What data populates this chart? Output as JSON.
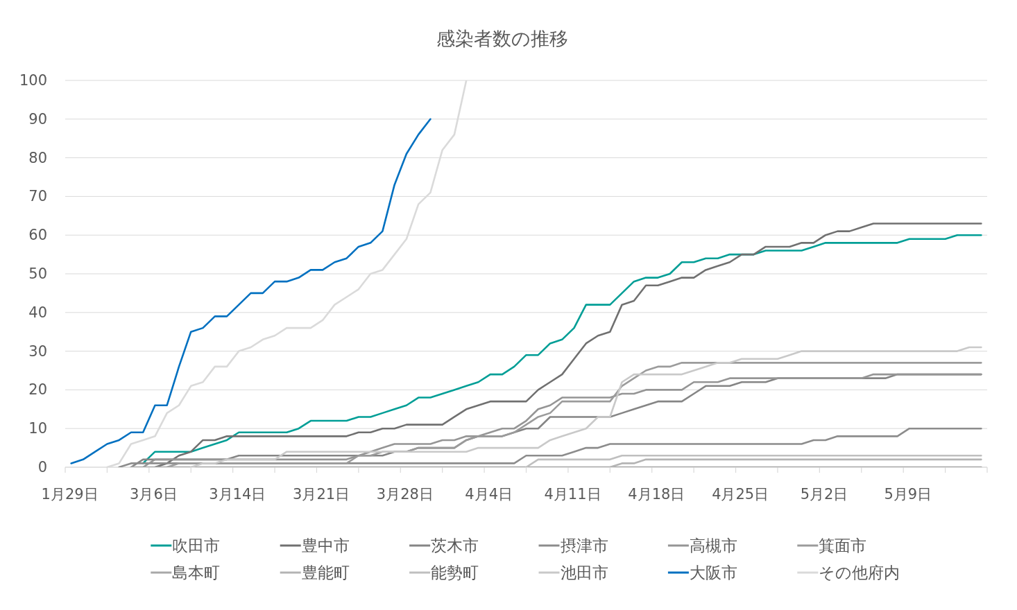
{
  "chart_data": {
    "type": "line",
    "title": "感染者数の推移",
    "categories": [
      "1月29日",
      null,
      null,
      null,
      null,
      null,
      null,
      "3月6日",
      null,
      null,
      null,
      null,
      null,
      null,
      "3月14日",
      null,
      null,
      null,
      null,
      null,
      null,
      "3月21日",
      null,
      null,
      null,
      null,
      null,
      null,
      "3月28日",
      null,
      null,
      null,
      null,
      null,
      null,
      "4月4日",
      null,
      null,
      null,
      null,
      null,
      null,
      "4月11日",
      null,
      null,
      null,
      null,
      null,
      null,
      "4月18日",
      null,
      null,
      null,
      null,
      null,
      null,
      "4月25日",
      null,
      null,
      null,
      null,
      null,
      null,
      "5月2日",
      null,
      null,
      null,
      null,
      null,
      null,
      "5月9日",
      null,
      null,
      null,
      null,
      null,
      null
    ],
    "series": [
      {
        "name": "吹田市",
        "color": "#009e96",
        "values": [
          null,
          null,
          null,
          null,
          null,
          null,
          1,
          4,
          4,
          4,
          4,
          5,
          6,
          7,
          9,
          9,
          9,
          9,
          9,
          10,
          12,
          12,
          12,
          12,
          13,
          13,
          14,
          15,
          16,
          18,
          18,
          19,
          20,
          21,
          22,
          24,
          24,
          26,
          29,
          29,
          32,
          33,
          36,
          42,
          42,
          42,
          45,
          48,
          49,
          49,
          50,
          53,
          53,
          54,
          54,
          55,
          55,
          55,
          56,
          56,
          56,
          56,
          57,
          58,
          58,
          58,
          58,
          58,
          58,
          58,
          59,
          59,
          59,
          59,
          60,
          60,
          60
        ]
      },
      {
        "name": "豊中市",
        "color": "#707070",
        "values": [
          null,
          null,
          null,
          null,
          null,
          null,
          null,
          0,
          1,
          3,
          4,
          7,
          7,
          8,
          8,
          8,
          8,
          8,
          8,
          8,
          8,
          8,
          8,
          8,
          9,
          9,
          10,
          10,
          11,
          11,
          11,
          11,
          13,
          15,
          16,
          17,
          17,
          17,
          17,
          20,
          22,
          24,
          28,
          32,
          34,
          35,
          42,
          43,
          47,
          47,
          48,
          49,
          49,
          51,
          52,
          53,
          55,
          55,
          57,
          57,
          57,
          58,
          58,
          60,
          61,
          61,
          62,
          63,
          63,
          63,
          63,
          63,
          63,
          63,
          63,
          63,
          63
        ]
      },
      {
        "name": "茨木市",
        "color": "#858585",
        "values": [
          null,
          null,
          null,
          null,
          null,
          0,
          2,
          2,
          2,
          2,
          2,
          2,
          2,
          2,
          3,
          3,
          3,
          3,
          3,
          3,
          3,
          3,
          3,
          3,
          3,
          3,
          3,
          4,
          4,
          5,
          5,
          5,
          5,
          7,
          8,
          8,
          8,
          9,
          10,
          10,
          13,
          13,
          13,
          13,
          13,
          13,
          14,
          15,
          16,
          17,
          17,
          17,
          19,
          21,
          21,
          21,
          22,
          22,
          22,
          23,
          23,
          23,
          23,
          23,
          23,
          23,
          23,
          23,
          23,
          24,
          24,
          24,
          24,
          24,
          24,
          24,
          24
        ]
      },
      {
        "name": "摂津市",
        "color": "#8c8c8c",
        "values": [
          null,
          null,
          null,
          null,
          0,
          1,
          1,
          1,
          1,
          1,
          1,
          1,
          1,
          1,
          1,
          1,
          1,
          1,
          1,
          1,
          1,
          1,
          1,
          1,
          1,
          1,
          1,
          1,
          1,
          1,
          1,
          1,
          1,
          1,
          1,
          1,
          1,
          1,
          3,
          3,
          3,
          3,
          4,
          5,
          5,
          6,
          6,
          6,
          6,
          6,
          6,
          6,
          6,
          6,
          6,
          6,
          6,
          6,
          6,
          6,
          6,
          6,
          7,
          7,
          8,
          8,
          8,
          8,
          8,
          8,
          10,
          10,
          10,
          10,
          10,
          10,
          10
        ]
      },
      {
        "name": "高槻市",
        "color": "#959595",
        "values": [
          null,
          null,
          null,
          null,
          null,
          null,
          0,
          2,
          2,
          2,
          2,
          2,
          2,
          2,
          2,
          2,
          2,
          2,
          2,
          2,
          2,
          2,
          2,
          2,
          3,
          4,
          5,
          6,
          6,
          6,
          6,
          7,
          7,
          8,
          8,
          9,
          10,
          10,
          12,
          15,
          16,
          18,
          18,
          18,
          18,
          18,
          19,
          19,
          20,
          20,
          20,
          20,
          22,
          22,
          22,
          23,
          23,
          23,
          23,
          23,
          23,
          23,
          23,
          23,
          23,
          23,
          23,
          24,
          24,
          24,
          24,
          24,
          24,
          24,
          24,
          24,
          24
        ]
      },
      {
        "name": "箕面市",
        "color": "#9b9b9b",
        "values": [
          null,
          null,
          null,
          null,
          null,
          null,
          null,
          null,
          0,
          1,
          1,
          1,
          1,
          1,
          1,
          1,
          1,
          1,
          1,
          1,
          1,
          1,
          1,
          1,
          3,
          3,
          4,
          4,
          4,
          5,
          5,
          5,
          5,
          7,
          8,
          8,
          8,
          9,
          11,
          13,
          14,
          17,
          17,
          17,
          17,
          17,
          21,
          23,
          25,
          26,
          26,
          27,
          27,
          27,
          27,
          27,
          27,
          27,
          27,
          27,
          27,
          27,
          27,
          27,
          27,
          27,
          27,
          27,
          27,
          27,
          27,
          27,
          27,
          27,
          27,
          27,
          27
        ]
      },
      {
        "name": "島本町",
        "color": "#a8a8a8",
        "values": [
          null,
          null,
          null,
          null,
          null,
          0,
          0,
          0,
          0,
          0,
          0,
          0,
          0,
          0,
          0,
          0,
          0,
          0,
          0,
          0,
          0,
          0,
          0,
          0,
          0,
          0,
          0,
          0,
          0,
          0,
          0,
          0,
          0,
          0,
          0,
          0,
          0,
          0,
          0,
          0,
          0,
          0,
          0,
          0,
          0,
          0,
          0,
          0,
          0,
          0,
          0,
          0,
          0,
          0,
          0,
          0,
          0,
          0,
          0,
          0,
          0,
          0,
          0,
          0,
          0,
          0,
          0,
          0,
          0,
          0,
          0,
          0,
          0,
          0,
          0,
          0,
          0
        ]
      },
      {
        "name": "豊能町",
        "color": "#b4b4b4",
        "values": [
          null,
          null,
          null,
          null,
          null,
          null,
          null,
          null,
          null,
          null,
          null,
          null,
          null,
          null,
          null,
          null,
          null,
          null,
          null,
          null,
          null,
          null,
          null,
          null,
          null,
          null,
          null,
          null,
          null,
          null,
          null,
          null,
          null,
          null,
          null,
          null,
          null,
          null,
          null,
          null,
          null,
          null,
          null,
          null,
          null,
          0,
          1,
          1,
          2,
          2,
          2,
          2,
          2,
          2,
          2,
          2,
          2,
          2,
          2,
          2,
          2,
          2,
          2,
          2,
          2,
          2,
          2,
          2,
          2,
          2,
          2,
          2,
          2,
          2,
          2,
          2,
          2
        ]
      },
      {
        "name": "能勢町",
        "color": "#bfbfbf",
        "values": [
          null,
          null,
          null,
          null,
          null,
          null,
          null,
          null,
          null,
          null,
          null,
          null,
          null,
          null,
          null,
          null,
          null,
          null,
          null,
          null,
          null,
          null,
          null,
          null,
          null,
          null,
          null,
          null,
          null,
          null,
          null,
          null,
          null,
          null,
          null,
          null,
          null,
          null,
          0,
          2,
          2,
          2,
          2,
          2,
          2,
          2,
          3,
          3,
          3,
          3,
          3,
          3,
          3,
          3,
          3,
          3,
          3,
          3,
          3,
          3,
          3,
          3,
          3,
          3,
          3,
          3,
          3,
          3,
          3,
          3,
          3,
          3,
          3,
          3,
          3,
          3,
          3
        ]
      },
      {
        "name": "池田市",
        "color": "#c9c9c9",
        "values": [
          null,
          null,
          null,
          null,
          null,
          null,
          null,
          null,
          null,
          null,
          0,
          1,
          1,
          2,
          2,
          2,
          2,
          2,
          4,
          4,
          4,
          4,
          4,
          4,
          4,
          4,
          4,
          4,
          4,
          4,
          4,
          4,
          4,
          4,
          5,
          5,
          5,
          5,
          5,
          5,
          7,
          8,
          9,
          10,
          13,
          13,
          22,
          24,
          24,
          24,
          24,
          24,
          25,
          26,
          27,
          27,
          28,
          28,
          28,
          28,
          29,
          30,
          30,
          30,
          30,
          30,
          30,
          30,
          30,
          30,
          30,
          30,
          30,
          30,
          30,
          31,
          31
        ]
      },
      {
        "name": "大阪市",
        "color": "#0070c0",
        "values": [
          1,
          2,
          4,
          6,
          7,
          9,
          9,
          16,
          16,
          26,
          35,
          36,
          39,
          39,
          42,
          45,
          45,
          48,
          48,
          49,
          51,
          51,
          53,
          54,
          57,
          58,
          61,
          73,
          81,
          86,
          90,
          null,
          null,
          null,
          null,
          null,
          null,
          null,
          null,
          null,
          null,
          null,
          null,
          null,
          null,
          null,
          null,
          null,
          null,
          null,
          null,
          null,
          null,
          null,
          null,
          null,
          null,
          null,
          null,
          null,
          null,
          null,
          null,
          null,
          null,
          null,
          null,
          null,
          null,
          null,
          null,
          null,
          null,
          null,
          null,
          null,
          null
        ]
      },
      {
        "name": "その他府内",
        "color": "#dadada",
        "values": [
          null,
          null,
          null,
          0,
          1,
          6,
          7,
          8,
          14,
          16,
          21,
          22,
          26,
          26,
          30,
          31,
          33,
          34,
          36,
          36,
          36,
          38,
          42,
          44,
          46,
          50,
          51,
          55,
          59,
          68,
          71,
          82,
          86,
          100,
          null,
          null,
          null,
          null,
          null,
          null,
          null,
          null,
          null,
          null,
          null,
          null,
          null,
          null,
          null,
          null,
          null,
          null,
          null,
          null,
          null,
          null,
          null,
          null,
          null,
          null,
          null,
          null,
          null,
          null,
          null,
          null,
          null,
          null,
          null,
          null,
          null,
          null,
          null,
          null,
          null,
          null,
          null
        ]
      }
    ],
    "ylim": [
      0,
      100
    ],
    "yticks": [
      0,
      10,
      20,
      30,
      40,
      50,
      60,
      70,
      80,
      90,
      100
    ],
    "grid": "y",
    "legend": "bottom"
  }
}
